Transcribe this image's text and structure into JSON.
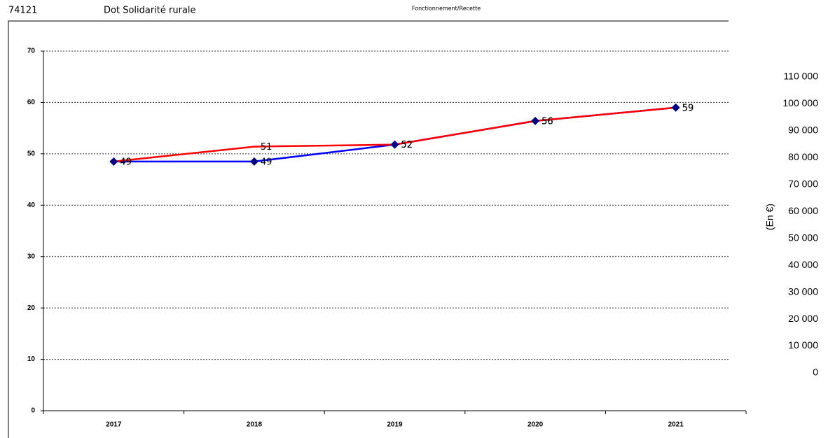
{
  "header": {
    "code": "74121",
    "label": "Dot Solidarité rurale",
    "section": "Fonctionnement/Recette"
  },
  "chart_data": {
    "type": "line",
    "categories": [
      "2017",
      "2018",
      "2019",
      "2020",
      "2021"
    ],
    "series": [
      {
        "color": "#0000ff",
        "marker_color": "#000080",
        "values": [
          48.5,
          48.5,
          51.8,
          56.4,
          59
        ],
        "value_labels": [
          "49",
          "49",
          "52",
          "56",
          "59"
        ]
      },
      {
        "color": "#ff0000",
        "values": [
          48.5,
          51.4,
          51.8,
          56.4,
          59
        ],
        "value_labels": [
          "49",
          "51",
          "52",
          "56",
          "59"
        ]
      }
    ],
    "ylim": [
      0,
      70
    ],
    "yticks": [
      0,
      10,
      20,
      30,
      40,
      50,
      60,
      70
    ],
    "grid": true,
    "y2label": "(En €)",
    "y2lim": [
      0,
      110000
    ],
    "y2ticks": [
      0,
      {
        "value": 10000,
        "label": "10 000"
      },
      {
        "value": 20000,
        "label": "20 000"
      },
      {
        "value": 30000,
        "label": "30 000"
      },
      {
        "value": 40000,
        "label": "40 000"
      },
      {
        "value": 50000,
        "label": "50 000"
      },
      {
        "value": 60000,
        "label": "60 000"
      },
      {
        "value": 70000,
        "label": "70 000"
      },
      {
        "value": 80000,
        "label": "80 000"
      },
      {
        "value": 90000,
        "label": "90 000"
      },
      {
        "value": 100000,
        "label": "100 000"
      },
      {
        "value": 110000,
        "label": "110 000"
      }
    ]
  }
}
